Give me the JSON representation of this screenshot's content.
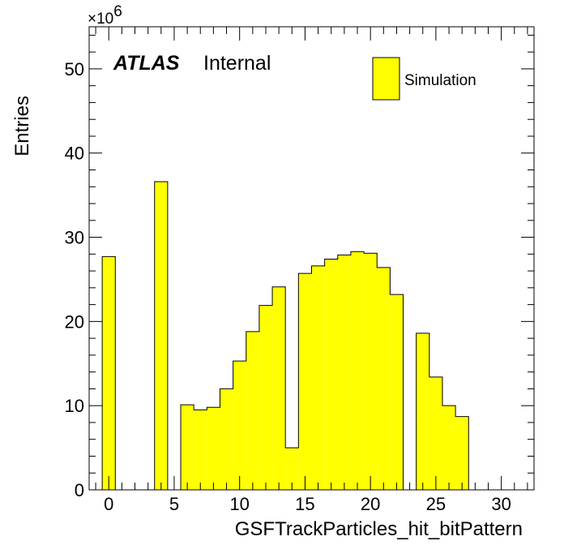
{
  "chart_data": {
    "type": "bar",
    "xlabel": "GSFTrackParticles_hit_bitPattern",
    "ylabel": "Entries",
    "y_multiplier": "×10",
    "y_multiplier_exp": "6",
    "xlim": [
      -1.5,
      32.5
    ],
    "ylim": [
      0,
      55
    ],
    "xticks": [
      0,
      5,
      10,
      15,
      20,
      25,
      30
    ],
    "yticks": [
      0,
      10,
      20,
      30,
      40,
      50
    ],
    "bin_width": 1,
    "bins": [
      {
        "x": 0,
        "y": 27.7
      },
      {
        "x": 4,
        "y": 36.6
      },
      {
        "x": 6,
        "y": 10.1
      },
      {
        "x": 7,
        "y": 9.5
      },
      {
        "x": 8,
        "y": 9.8
      },
      {
        "x": 9,
        "y": 12.0
      },
      {
        "x": 10,
        "y": 15.3
      },
      {
        "x": 11,
        "y": 18.8
      },
      {
        "x": 12,
        "y": 21.9
      },
      {
        "x": 13,
        "y": 24.1
      },
      {
        "x": 14,
        "y": 5.0
      },
      {
        "x": 15,
        "y": 25.7
      },
      {
        "x": 16,
        "y": 26.6
      },
      {
        "x": 17,
        "y": 27.4
      },
      {
        "x": 18,
        "y": 27.9
      },
      {
        "x": 19,
        "y": 28.3
      },
      {
        "x": 20,
        "y": 28.1
      },
      {
        "x": 21,
        "y": 26.4
      },
      {
        "x": 22,
        "y": 23.2
      },
      {
        "x": 24,
        "y": 18.6
      },
      {
        "x": 25,
        "y": 13.4
      },
      {
        "x": 26,
        "y": 10.0
      },
      {
        "x": 27,
        "y": 8.7
      }
    ],
    "series": [
      {
        "name": "Simulation",
        "color": "#ffff00"
      }
    ],
    "legend": "top-right",
    "grid": false
  },
  "labels": {
    "atlas": "ATLAS",
    "internal": "Internal"
  }
}
